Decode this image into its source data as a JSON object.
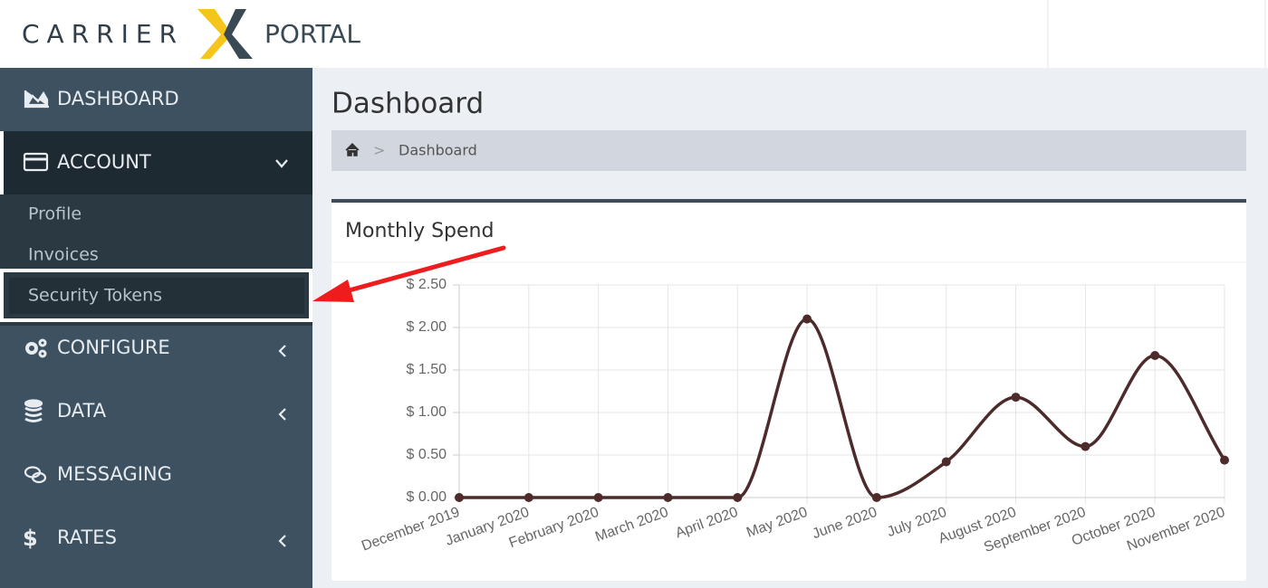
{
  "header": {
    "logo_left": "CARRIER",
    "logo_right": "PORTAL"
  },
  "sidebar": {
    "items": [
      "DASHBOARD",
      "ACCOUNT",
      "CONFIGURE",
      "DATA",
      "MESSAGING",
      "RATES"
    ],
    "account_subitems": [
      "Profile",
      "Invoices",
      "Security Tokens"
    ],
    "rates_icon": "$"
  },
  "page_title": "Dashboard",
  "breadcrumb": {
    "separator": ">",
    "current": "Dashboard"
  },
  "chart_data": {
    "type": "line",
    "title": "Monthly Spend",
    "categories": [
      "December 2019",
      "January 2020",
      "February 2020",
      "March 2020",
      "April 2020",
      "May 2020",
      "June 2020",
      "July 2020",
      "August 2020",
      "September 2020",
      "October 2020",
      "November 2020"
    ],
    "series": [
      {
        "name": "Monthly Spend",
        "color": "#4d2b2b",
        "values": [
          0,
          0,
          0,
          0,
          0,
          2.1,
          0,
          0.42,
          1.18,
          0.6,
          1.67,
          0.44
        ]
      }
    ],
    "ylim": [
      0,
      2.5
    ],
    "yticks": [
      {
        "value": 0,
        "label": "$ 0.00"
      },
      {
        "value": 0.5,
        "label": "$ 0.50"
      },
      {
        "value": 1,
        "label": "$ 1.00"
      },
      {
        "value": 1.5,
        "label": "$ 1.50"
      },
      {
        "value": 2,
        "label": "$ 2.00"
      },
      {
        "value": 2.5,
        "label": "$ 2.50"
      }
    ],
    "grid": true
  }
}
